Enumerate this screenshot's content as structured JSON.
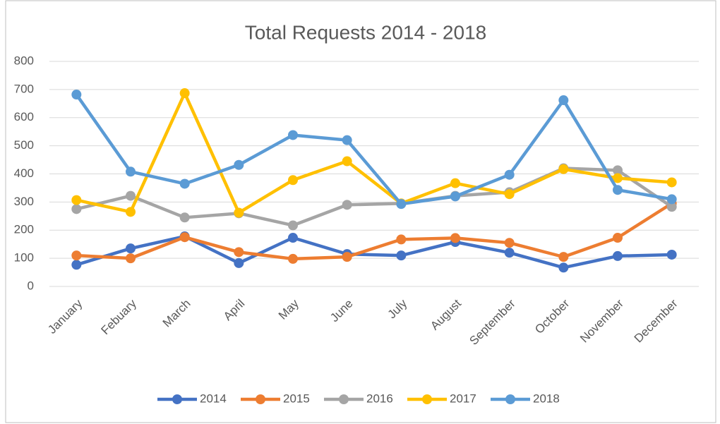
{
  "chart_data": {
    "type": "line",
    "title": "Total Requests 2014 - 2018",
    "categories": [
      "January",
      "Febuary",
      "March",
      "April",
      "May",
      "June",
      "July",
      "August",
      "September",
      "October",
      "November",
      "December"
    ],
    "series": [
      {
        "name": "2014",
        "color": "#4472c4",
        "values": [
          77,
          135,
          178,
          83,
          173,
          115,
          110,
          158,
          120,
          67,
          108,
          113
        ]
      },
      {
        "name": "2015",
        "color": "#ed7d31",
        "values": [
          110,
          100,
          175,
          122,
          98,
          105,
          167,
          172,
          155,
          105,
          173,
          295
        ]
      },
      {
        "name": "2016",
        "color": "#a5a5a5",
        "values": [
          275,
          322,
          245,
          260,
          217,
          290,
          295,
          322,
          335,
          420,
          413,
          283
        ]
      },
      {
        "name": "2017",
        "color": "#ffc000",
        "values": [
          307,
          265,
          687,
          262,
          378,
          445,
          295,
          367,
          328,
          417,
          385,
          370
        ]
      },
      {
        "name": "2018",
        "color": "#5b9bd5",
        "values": [
          682,
          408,
          365,
          432,
          538,
          520,
          293,
          320,
          397,
          662,
          343,
          310
        ]
      }
    ],
    "ylim": [
      0,
      800
    ],
    "yticks": [
      0,
      100,
      200,
      300,
      400,
      500,
      600,
      700,
      800
    ],
    "grid": true,
    "legend": "bottom"
  }
}
